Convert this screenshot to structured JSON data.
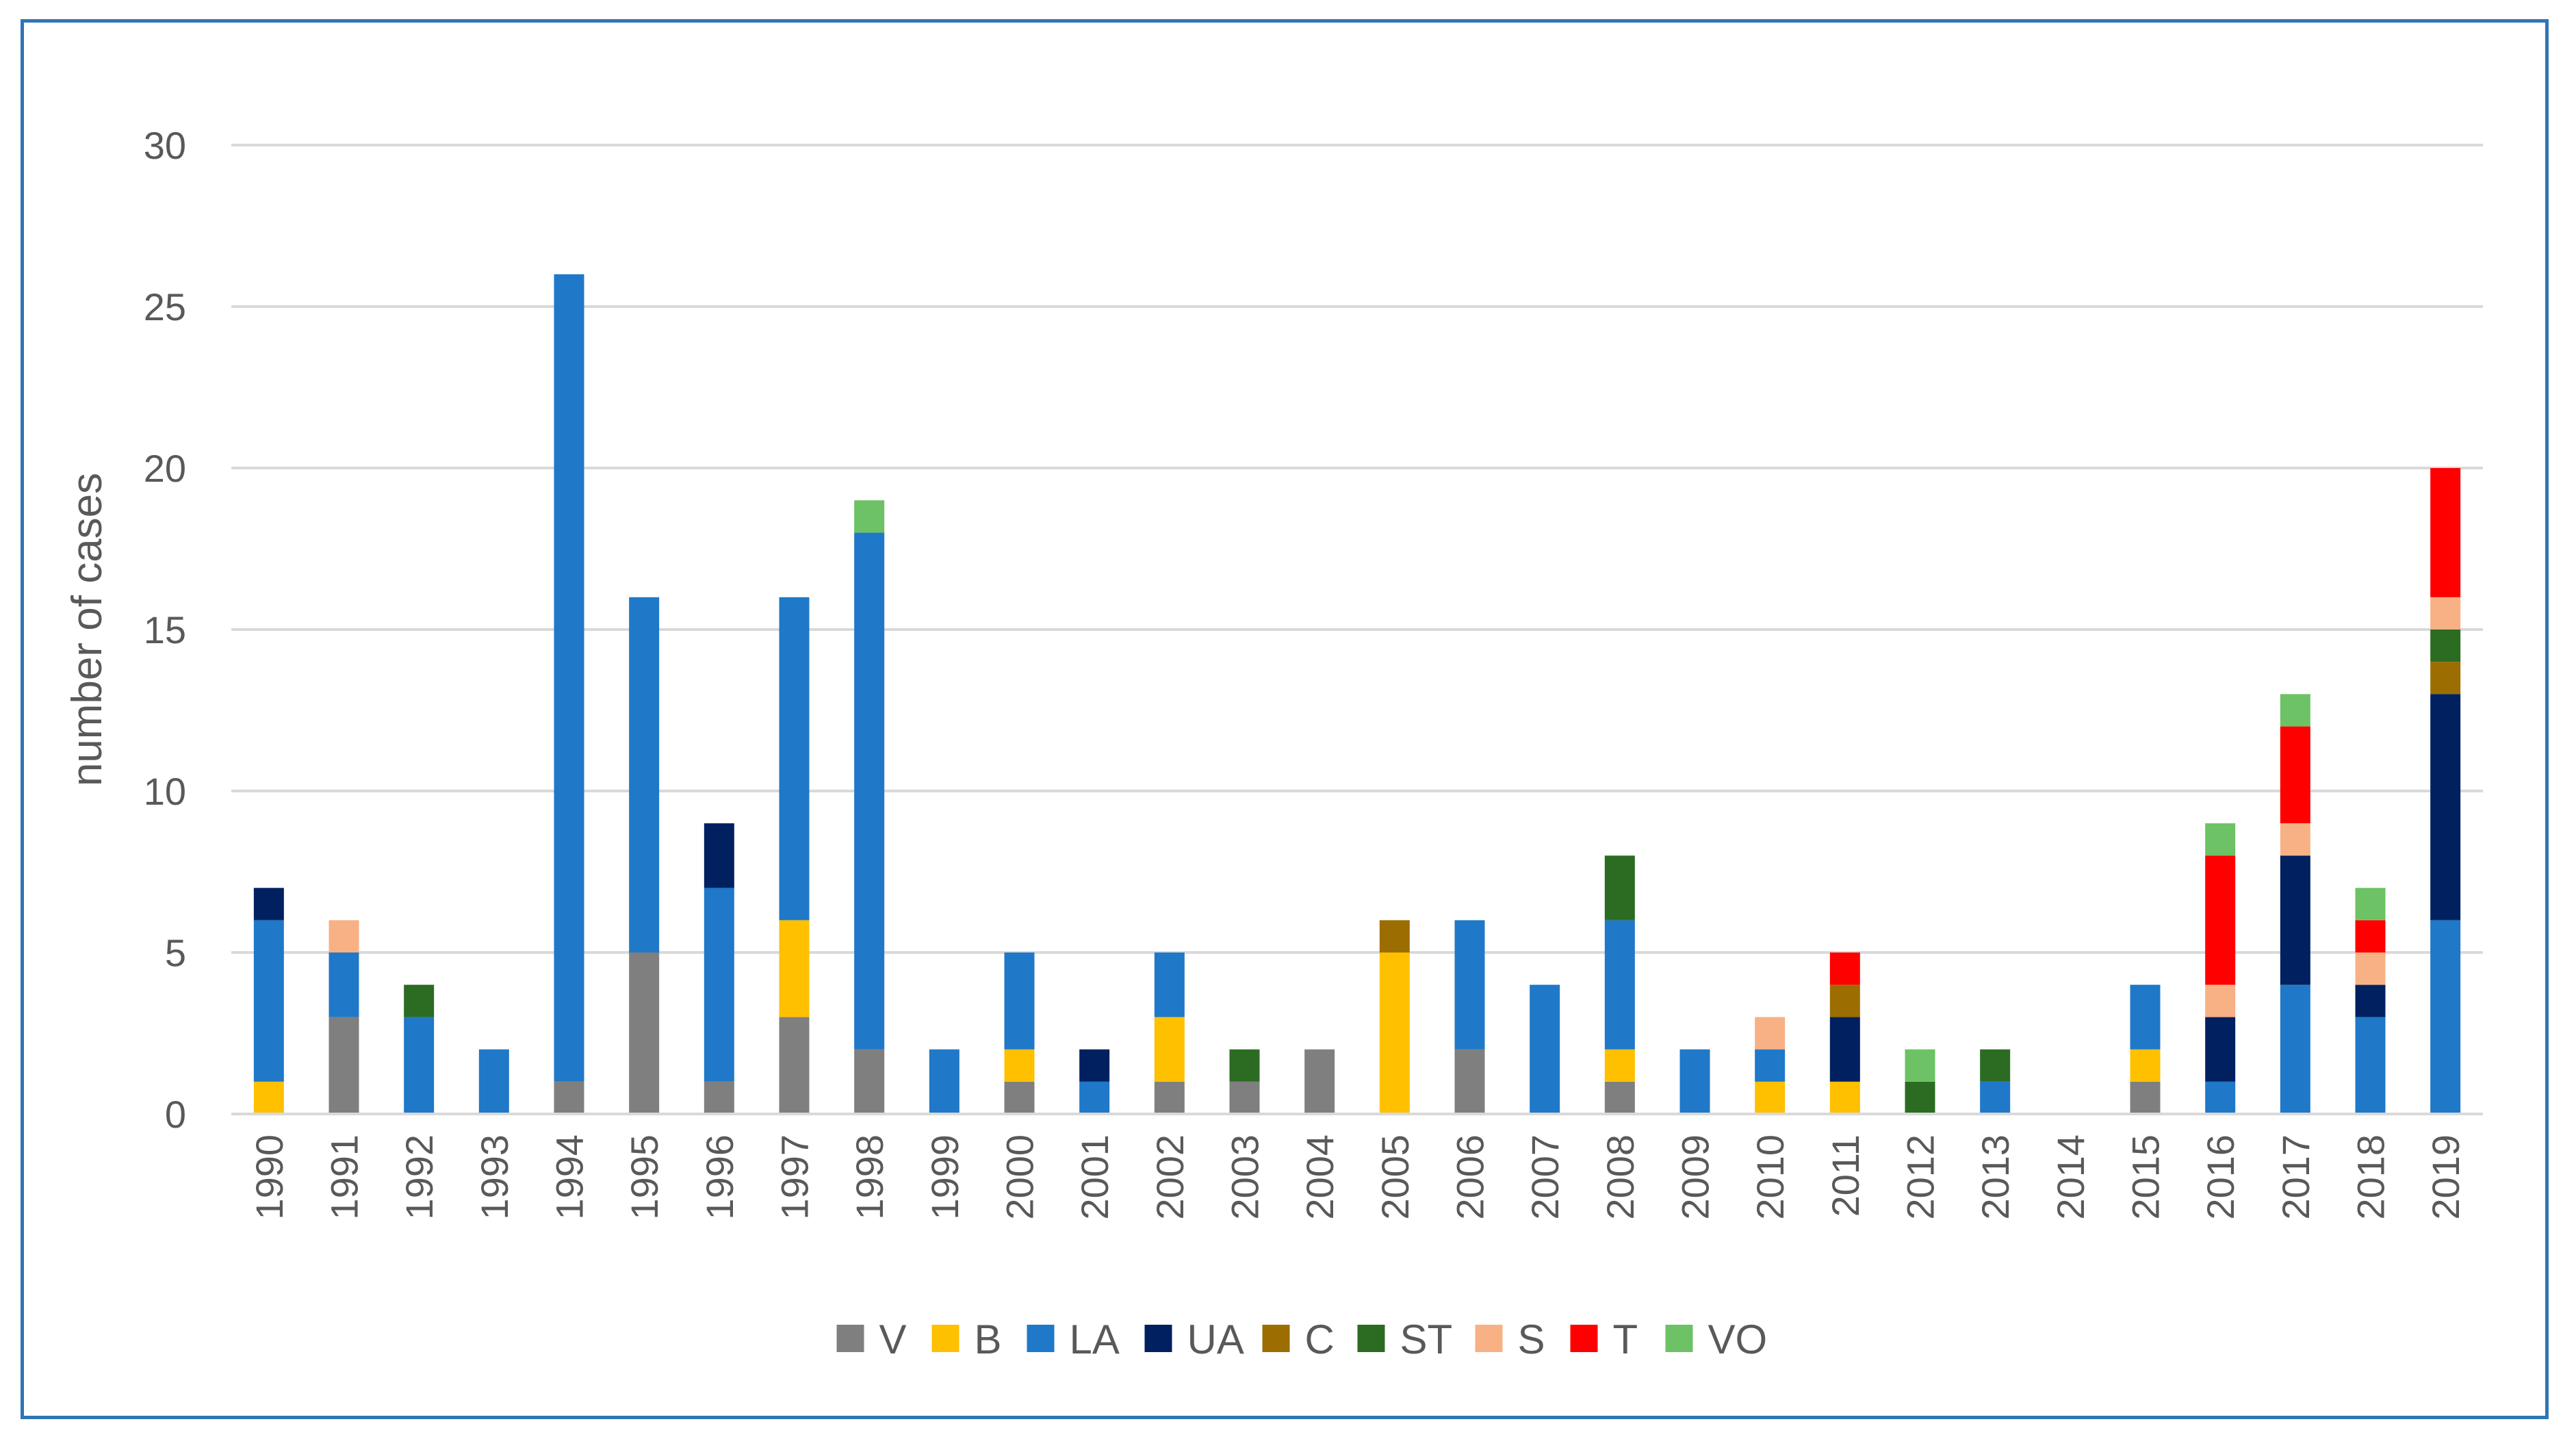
{
  "chart_data": {
    "type": "bar",
    "stacked": true,
    "title": "",
    "xlabel": "",
    "ylabel": "number of cases",
    "ylim": [
      0,
      30
    ],
    "yticks": [
      0,
      5,
      10,
      15,
      20,
      25,
      30
    ],
    "grid": true,
    "legend_position": "bottom",
    "categories": [
      "1990",
      "1991",
      "1992",
      "1993",
      "1994",
      "1995",
      "1996",
      "1997",
      "1998",
      "1999",
      "2000",
      "2001",
      "2002",
      "2003",
      "2004",
      "2005",
      "2006",
      "2007",
      "2008",
      "2009",
      "2010",
      "2011",
      "2012",
      "2013",
      "2014",
      "2015",
      "2016",
      "2017",
      "2018",
      "2019"
    ],
    "series": [
      {
        "name": "V",
        "color": "#7f7f7f",
        "values": [
          0,
          3,
          0,
          0,
          1,
          5,
          1,
          3,
          2,
          0,
          1,
          0,
          1,
          1,
          2,
          0,
          2,
          0,
          1,
          0,
          0,
          0,
          0,
          0,
          0,
          1,
          0,
          0,
          0,
          0
        ]
      },
      {
        "name": "B",
        "color": "#ffc000",
        "values": [
          1,
          0,
          0,
          0,
          0,
          0,
          0,
          3,
          0,
          0,
          1,
          0,
          2,
          0,
          0,
          5,
          0,
          0,
          1,
          0,
          1,
          1,
          0,
          0,
          0,
          1,
          0,
          0,
          0,
          0
        ]
      },
      {
        "name": "LA",
        "color": "#1f78c8",
        "values": [
          5,
          2,
          3,
          2,
          25,
          11,
          6,
          10,
          16,
          2,
          3,
          1,
          2,
          0,
          0,
          0,
          4,
          4,
          4,
          2,
          1,
          0,
          0,
          1,
          0,
          2,
          1,
          4,
          3,
          6
        ]
      },
      {
        "name": "UA",
        "color": "#002060",
        "values": [
          1,
          0,
          0,
          0,
          0,
          0,
          2,
          0,
          0,
          0,
          0,
          1,
          0,
          0,
          0,
          0,
          0,
          0,
          0,
          0,
          0,
          2,
          0,
          0,
          0,
          0,
          2,
          4,
          1,
          7
        ]
      },
      {
        "name": "C",
        "color": "#9c6d00",
        "values": [
          0,
          0,
          0,
          0,
          0,
          0,
          0,
          0,
          0,
          0,
          0,
          0,
          0,
          0,
          0,
          1,
          0,
          0,
          0,
          0,
          0,
          1,
          0,
          0,
          0,
          0,
          0,
          0,
          0,
          1
        ]
      },
      {
        "name": "ST",
        "color": "#2b6b22",
        "values": [
          0,
          0,
          1,
          0,
          0,
          0,
          0,
          0,
          0,
          0,
          0,
          0,
          0,
          1,
          0,
          0,
          0,
          0,
          2,
          0,
          0,
          0,
          1,
          1,
          0,
          0,
          0,
          0,
          0,
          1
        ]
      },
      {
        "name": "S",
        "color": "#f8b184",
        "values": [
          0,
          1,
          0,
          0,
          0,
          0,
          0,
          0,
          0,
          0,
          0,
          0,
          0,
          0,
          0,
          0,
          0,
          0,
          0,
          0,
          1,
          0,
          0,
          0,
          0,
          0,
          1,
          1,
          1,
          1
        ]
      },
      {
        "name": "T",
        "color": "#ff0000",
        "values": [
          0,
          0,
          0,
          0,
          0,
          0,
          0,
          0,
          0,
          0,
          0,
          0,
          0,
          0,
          0,
          0,
          0,
          0,
          0,
          0,
          0,
          1,
          0,
          0,
          0,
          0,
          4,
          3,
          1,
          4
        ]
      },
      {
        "name": "VO",
        "color": "#6cc264",
        "values": [
          0,
          0,
          0,
          0,
          0,
          0,
          0,
          0,
          1,
          0,
          0,
          0,
          0,
          0,
          0,
          0,
          0,
          0,
          0,
          0,
          0,
          0,
          1,
          0,
          0,
          0,
          1,
          1,
          1,
          0
        ]
      }
    ]
  },
  "colors": {
    "frame_border": "#2e75b6",
    "gridline": "#d9d9d9",
    "text": "#595959"
  }
}
